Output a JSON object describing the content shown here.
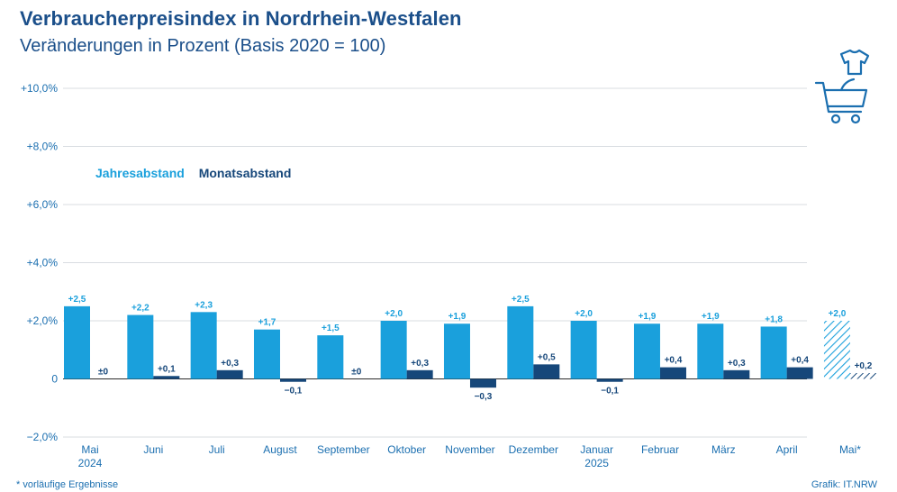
{
  "title": "Verbraucherpreisindex in Nordrhein-Westfalen",
  "subtitle": "Veränderungen in Prozent (Basis 2020 = 100)",
  "footnote": "* vorläufige Ergebnisse",
  "credit": "Grafik: IT.NRW",
  "icon": "shopping-cart-with-clothes-icon",
  "colors": {
    "jahresabstand": "#1aa0dc",
    "monatsabstand": "#16477a",
    "axis_text": "#1b6fb0",
    "grid": "#d9dde2"
  },
  "chart_data": {
    "type": "bar",
    "categories": [
      "Mai 2024",
      "Juni",
      "Juli",
      "August",
      "September",
      "Oktober",
      "November",
      "Dezember",
      "Januar 2025",
      "Februar",
      "März",
      "April",
      "Mai*"
    ],
    "series": [
      {
        "name": "Jahresabstand",
        "values": [
          2.5,
          2.2,
          2.3,
          1.7,
          1.5,
          2.0,
          1.9,
          2.5,
          2.0,
          1.9,
          1.9,
          1.8,
          2.0
        ],
        "labels": [
          "+2,5",
          "+2,2",
          "+2,3",
          "+1,7",
          "+1,5",
          "+2,0",
          "+1,9",
          "+2,5",
          "+2,0",
          "+1,9",
          "+1,9",
          "+1,8",
          "+2,0"
        ]
      },
      {
        "name": "Monatsabstand",
        "values": [
          0,
          0.1,
          0.3,
          -0.1,
          0,
          0.3,
          -0.3,
          0.5,
          -0.1,
          0.4,
          0.3,
          0.4,
          0.2
        ],
        "labels": [
          "±0",
          "+0,1",
          "+0,3",
          "−0,1",
          "±0",
          "+0,3",
          "−0,3",
          "+0,5",
          "−0,1",
          "+0,4",
          "+0,3",
          "+0,4",
          "+0,2"
        ]
      }
    ],
    "provisional_index": 12,
    "ylim": [
      -2.0,
      10.0
    ],
    "yticks": [
      -2.0,
      0,
      2.0,
      4.0,
      6.0,
      8.0,
      10.0
    ],
    "ytick_labels": [
      "−2,0%",
      "0",
      "+2,0%",
      "+4,0%",
      "+6,0%",
      "+8,0%",
      "+10,0%"
    ],
    "grid": true,
    "legend": "top-left"
  }
}
